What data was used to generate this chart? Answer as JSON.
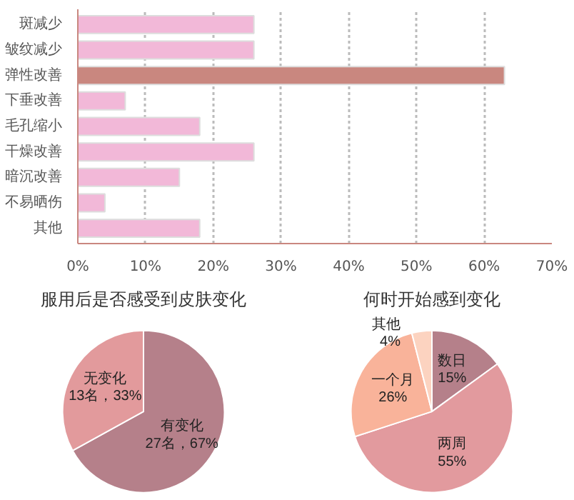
{
  "chart_data": [
    {
      "type": "bar",
      "orientation": "horizontal",
      "categories": [
        "斑减少",
        "皱纹减少",
        "弹性改善",
        "下垂改善",
        "毛孔缩小",
        "干燥改善",
        "暗沉改善",
        "不易晒伤",
        "其他"
      ],
      "values": [
        26,
        26,
        63,
        7,
        18,
        26,
        15,
        4,
        18
      ],
      "colors": [
        "#f2b8d8",
        "#f2b8d8",
        "#c9877f",
        "#f2b8d8",
        "#f2b8d8",
        "#f2b8d8",
        "#f2b8d8",
        "#f2b8d8",
        "#f2b8d8"
      ],
      "xlim": [
        0,
        70
      ],
      "xticks": [
        {
          "value": 0,
          "label": "0%"
        },
        {
          "value": 10,
          "label": "10%"
        },
        {
          "value": 20,
          "label": "20%"
        },
        {
          "value": 30,
          "label": "30%"
        },
        {
          "value": 40,
          "label": "40%"
        },
        {
          "value": 50,
          "label": "50%"
        },
        {
          "value": 60,
          "label": "60%"
        },
        {
          "value": 70,
          "label": "70%"
        }
      ],
      "grid": "x"
    },
    {
      "type": "pie",
      "title": "服用后是否感受到皮肤变化",
      "categories": [
        "有变化",
        "无变化"
      ],
      "values": [
        67,
        33
      ],
      "colors": [
        "#b5808a",
        "#e29a9c"
      ],
      "value_labels": [
        "27名，67%",
        "13名，33%"
      ]
    },
    {
      "type": "pie",
      "title": "何时开始感到变化",
      "categories": [
        "数日",
        "两周",
        "一个月",
        "其他"
      ],
      "values": [
        15,
        55,
        26,
        4
      ],
      "colors": [
        "#b5808a",
        "#e29a9e",
        "#f9b39a",
        "#fcd3c0"
      ],
      "value_labels": [
        "15%",
        "55%",
        "26%",
        "4%"
      ]
    }
  ]
}
